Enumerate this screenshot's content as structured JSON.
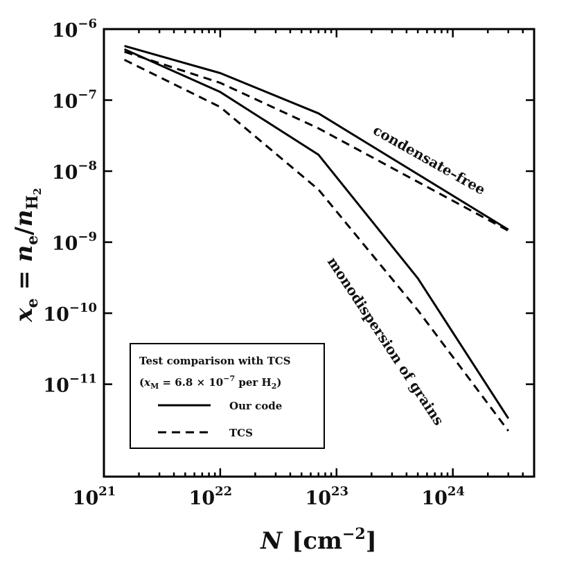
{
  "chart_data": {
    "type": "line",
    "xlabel": {
      "var": "N",
      "unit_open": "[cm",
      "unit_exp": "−2",
      "unit_close": "]"
    },
    "ylabel": {
      "var": "x",
      "var_sub": "e",
      "eq": " = ",
      "num": "n",
      "num_sub": "e",
      "slash": "/",
      "den": "n",
      "den_sub": "H",
      "den_subsub": "2"
    },
    "x_scale": "log",
    "y_scale": "log",
    "xlim": [
      1e+21,
      5e+24
    ],
    "ylim": [
      5e-13,
      1e-06
    ],
    "x_ticks": [
      {
        "base": "10",
        "exp": "21",
        "value": 1e+21
      },
      {
        "base": "10",
        "exp": "22",
        "value": 1e+22
      },
      {
        "base": "10",
        "exp": "23",
        "value": 1e+23
      },
      {
        "base": "10",
        "exp": "24",
        "value": 1e+24
      }
    ],
    "y_ticks": [
      {
        "base": "10",
        "exp": "−6",
        "value": 1e-06
      },
      {
        "base": "10",
        "exp": "−7",
        "value": 1e-07
      },
      {
        "base": "10",
        "exp": "−8",
        "value": 1e-08
      },
      {
        "base": "10",
        "exp": "−9",
        "value": 1e-09
      },
      {
        "base": "10",
        "exp": "−10",
        "value": 1e-10
      },
      {
        "base": "10",
        "exp": "−11",
        "value": 1e-11
      }
    ],
    "grid": false,
    "legend_position": "lower-left",
    "series": [
      {
        "name": "Our code",
        "group": "condensate-free",
        "style": "solid",
        "color": "#000000",
        "x": [
          1.5e+21,
          1e+22,
          7e+22,
          3e+24
        ],
        "y": [
          5.8e-07,
          2.4e-07,
          6.5e-08,
          1.5e-09
        ]
      },
      {
        "name": "TCS",
        "group": "condensate-free",
        "style": "dashed",
        "color": "#000000",
        "x": [
          1.5e+21,
          1e+22,
          7e+22,
          3e+24
        ],
        "y": [
          4.8e-07,
          1.75e-07,
          4e-08,
          1.45e-09
        ]
      },
      {
        "name": "Our code",
        "group": "monodispersion of grains",
        "style": "solid",
        "color": "#000000",
        "x": [
          1.5e+21,
          1e+22,
          7e+22,
          5e+23,
          3e+24
        ],
        "y": [
          5.2e-07,
          1.3e-07,
          1.7e-08,
          3.1e-10,
          3.3e-12
        ]
      },
      {
        "name": "TCS",
        "group": "monodispersion of grains",
        "style": "dashed",
        "color": "#000000",
        "x": [
          1.5e+21,
          1e+22,
          7e+22,
          5e+23,
          3e+24
        ],
        "y": [
          3.7e-07,
          8e-08,
          5.5e-09,
          1.1e-10,
          2.2e-12
        ]
      }
    ],
    "annotations": [
      {
        "text": "condensate–free"
      },
      {
        "text": "monodispersion of grains"
      }
    ],
    "legend": {
      "title_line1": "Test comparison with TCS",
      "title_line2": {
        "open": "(",
        "var": "x",
        "var_sub": "M",
        "eq": " = 6.8 × 10",
        "exp": "−7",
        "per": " per H",
        "per_sub": "2",
        "close": ")"
      },
      "entries": [
        {
          "label": "Our code",
          "style": "solid"
        },
        {
          "label": "TCS",
          "style": "dashed"
        }
      ]
    }
  }
}
